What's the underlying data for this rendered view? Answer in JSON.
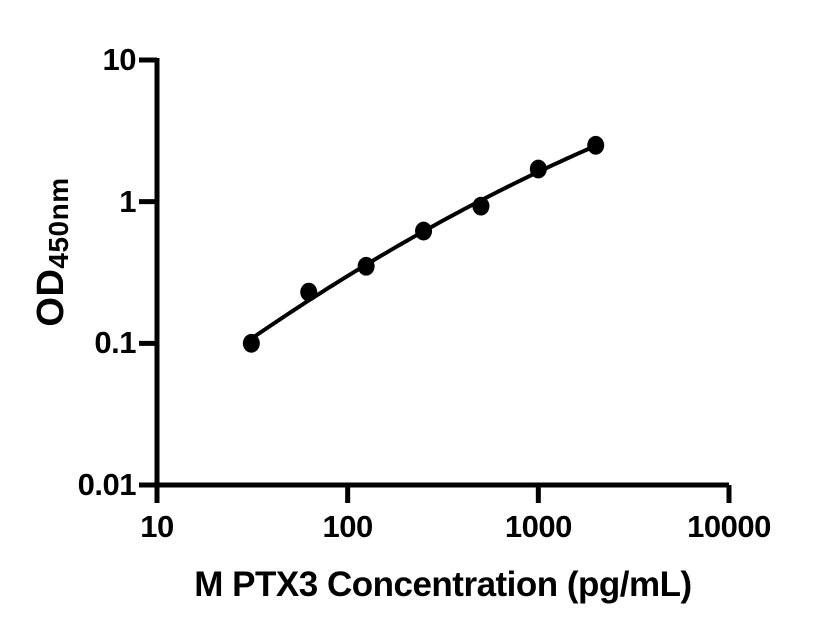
{
  "figure": {
    "background_color": "#ffffff",
    "foreground_color": "#000000"
  },
  "chart_data": {
    "type": "scatter",
    "title": "",
    "xlabel": "M PTX3 Concentration (pg/mL)",
    "ylabel": "OD",
    "ylabel_subscript": "450nm",
    "x_scale": "log10",
    "y_scale": "log10",
    "xlim": [
      10,
      10000
    ],
    "ylim": [
      0.01,
      10
    ],
    "x_ticks": [
      10,
      100,
      1000,
      10000
    ],
    "x_tick_labels": [
      "10",
      "100",
      "1000",
      "10000"
    ],
    "y_ticks": [
      10,
      1,
      0.1,
      0.01
    ],
    "y_tick_labels": [
      "10",
      "1",
      "0.1",
      "0.01"
    ],
    "grid": false,
    "legend": "none",
    "marker_color": "#000000",
    "line_color": "#000000",
    "series": [
      {
        "name": "standard-data-points",
        "type": "scatter",
        "marker": "filled-ellipse",
        "x": [
          31.25,
          62.5,
          125,
          250,
          500,
          1000,
          2000
        ],
        "y": [
          0.1,
          0.23,
          0.35,
          0.62,
          0.93,
          1.7,
          2.5
        ]
      },
      {
        "name": "fitted-standard-curve",
        "type": "line",
        "fit": "quadratic-least-squares-in-loglog",
        "x_range": [
          31.25,
          2000
        ]
      }
    ]
  }
}
